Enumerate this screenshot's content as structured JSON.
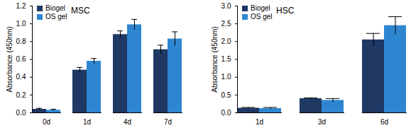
{
  "chart_data": [
    {
      "type": "bar",
      "title": "MSC",
      "y_label": "Absorbance (450nm)",
      "categories": [
        "0d",
        "1d",
        "4d",
        "7d"
      ],
      "series": [
        {
          "name": "Biogel",
          "color": "#1f3864",
          "values": [
            0.04,
            0.48,
            0.88,
            0.71
          ],
          "errors": [
            0.01,
            0.03,
            0.04,
            0.05
          ]
        },
        {
          "name": "OS gel",
          "color": "#2e86d1",
          "values": [
            0.03,
            0.58,
            0.99,
            0.83
          ],
          "errors": [
            0.01,
            0.03,
            0.06,
            0.08
          ]
        }
      ],
      "ylim": [
        0,
        1.2
      ],
      "yticks": [
        {
          "value": 0,
          "label": "0.0"
        },
        0.2,
        0.4,
        0.6,
        0.8,
        {
          "value": 1,
          "label": "1.0"
        },
        1.2
      ],
      "legend": "top-left",
      "grid": false
    },
    {
      "type": "bar",
      "title": "HSC",
      "y_label": "Absorbance (450nm)",
      "categories": [
        "1d",
        "3d",
        "6d"
      ],
      "series": [
        {
          "name": "Biogel",
          "color": "#1f3864",
          "values": [
            0.13,
            0.4,
            2.05
          ],
          "errors": [
            0.02,
            0.02,
            0.18
          ]
        },
        {
          "name": "OS gel",
          "color": "#2e86d1",
          "values": [
            0.12,
            0.35,
            2.45
          ],
          "errors": [
            0.03,
            0.05,
            0.25
          ]
        }
      ],
      "ylim": [
        0,
        3
      ],
      "yticks": [
        {
          "value": 0,
          "label": "0.0"
        },
        0.5,
        {
          "value": 1,
          "label": "1.0"
        },
        1.5,
        {
          "value": 2,
          "label": "2.0"
        },
        2.5,
        {
          "value": 3,
          "label": "3.0"
        }
      ],
      "legend": "top-left",
      "grid": false
    }
  ]
}
